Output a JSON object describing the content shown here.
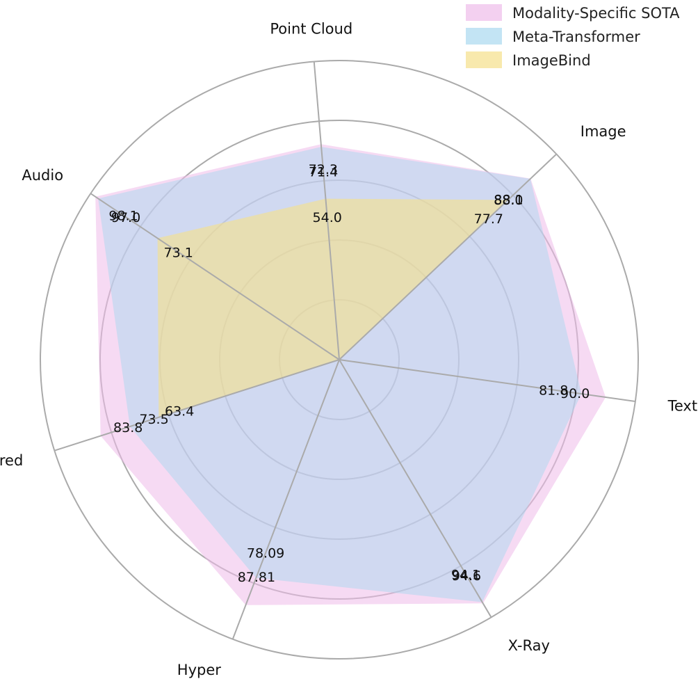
{
  "chart_data": {
    "type": "radar",
    "axes": [
      "Text",
      "Image",
      "Point Cloud",
      "Audio",
      "Infrared",
      "Hyper",
      "X-Ray"
    ],
    "series": [
      {
        "name": "Modality-Specific SOTA",
        "values": [
          90.0,
          88.1,
          72.3,
          98.1,
          83.8,
          87.81,
          94.6
        ],
        "labels": [
          "90.0",
          "88.1",
          "72.3",
          "98.1",
          "83.8",
          "87.81",
          "94.6"
        ],
        "fill": "#eebcea",
        "fill_opacity": 0.55
      },
      {
        "name": "Meta-Transformer",
        "values": [
          81.8,
          88.0,
          71.4,
          97.0,
          73.5,
          78.09,
          94.1
        ],
        "labels": [
          "81.8",
          "88.0",
          "71.4",
          "97.0",
          "73.5",
          "78.09",
          "94.1"
        ],
        "fill": "#a9d8f0",
        "fill_opacity": 0.5
      },
      {
        "name": "ImageBind",
        "values": [
          0,
          77.7,
          54.0,
          73.1,
          63.4,
          0,
          0
        ],
        "labels": [
          "",
          "77.7",
          "54.0",
          "73.1",
          "63.4",
          "",
          ""
        ],
        "fill": "#f5e08a",
        "fill_opacity": 0.62
      }
    ],
    "rmax": 100,
    "rings": 5,
    "grid": true,
    "legend": "top-right"
  },
  "colors": {
    "grid": "#aaaaaa",
    "overlap_sota_meta": "#c9d3f2"
  }
}
